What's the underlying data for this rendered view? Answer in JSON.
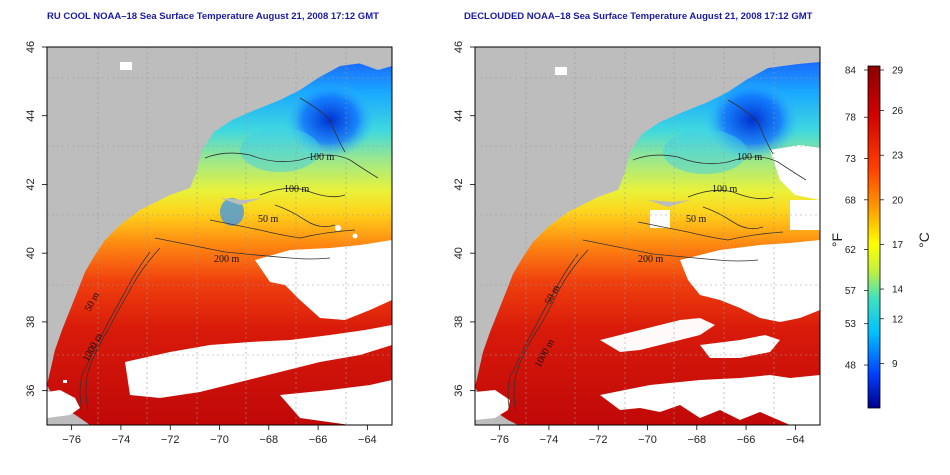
{
  "panels": [
    {
      "id": "left",
      "title": "RU COOL NOAA–18 Sea Surface Temperature August 21, 2008 17:12 GMT",
      "contour_labels": [
        "100 m",
        "100 m",
        "50 m",
        "200 m",
        "50 m",
        "1000 m"
      ]
    },
    {
      "id": "right",
      "title": "DECLOUDED NOAA–18 Sea Surface Temperature August 21, 2008 17:12 GMT",
      "contour_labels": [
        "100 m",
        "100 m",
        "50 m",
        "200 m",
        "50 m",
        "1000 m"
      ]
    }
  ],
  "axes": {
    "x_ticks": [
      "−76",
      "−74",
      "−72",
      "−70",
      "−68",
      "−66",
      "−64"
    ],
    "x_values": [
      -76,
      -74,
      -72,
      -70,
      -68,
      -66,
      -64
    ],
    "y_ticks": [
      "36",
      "38",
      "40",
      "42",
      "44",
      "46"
    ],
    "y_values": [
      36,
      38,
      40,
      42,
      44,
      46
    ],
    "lon_range": [
      -77,
      -63
    ],
    "lat_range": [
      35,
      46
    ]
  },
  "colorbar": {
    "unit_left": "°F",
    "unit_right": "°C",
    "fahrenheit_labels": [
      "84",
      "78",
      "73",
      "68",
      "62",
      "57",
      "53",
      "48"
    ],
    "fahrenheit_values": [
      84,
      78,
      73,
      68,
      62,
      57,
      53,
      48
    ],
    "celsius_labels": [
      "29",
      "26",
      "23",
      "20",
      "17",
      "14",
      "12",
      "9"
    ],
    "celsius_values": [
      29,
      26,
      23,
      20,
      17,
      14,
      12,
      9
    ],
    "range_c": [
      6,
      29
    ],
    "colors": [
      "#00008b",
      "#0040ff",
      "#00c0ff",
      "#40e0c0",
      "#c0f040",
      "#ffff00",
      "#ffa000",
      "#ff4000",
      "#d00000",
      "#8b0000"
    ]
  },
  "colors": {
    "land": "#bdbdbd",
    "cloud": "#ffffff",
    "contour": "#333333"
  }
}
